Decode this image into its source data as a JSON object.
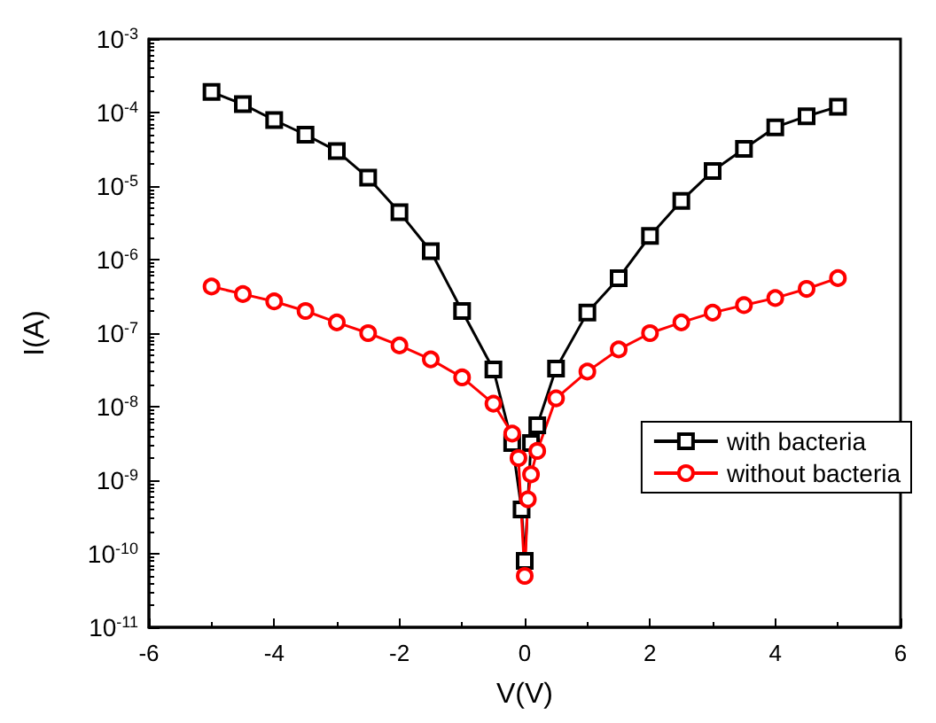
{
  "chart_data": {
    "type": "line",
    "xlabel": "V(V)",
    "ylabel": "I(A)",
    "series": [
      {
        "name": "with bacteria",
        "color": "#000000",
        "marker": "square",
        "x": [
          -5,
          -4.5,
          -4,
          -3.5,
          -3,
          -2.5,
          -2,
          -1.5,
          -1,
          -0.5,
          -0.2,
          -0.05,
          0,
          0.1,
          0.2,
          0.5,
          1,
          1.5,
          2,
          2.5,
          3,
          3.5,
          4,
          4.5,
          5
        ],
        "values": [
          0.00019,
          0.00013,
          7.9e-05,
          5e-05,
          3e-05,
          1.3e-05,
          4.4e-06,
          1.3e-06,
          2e-07,
          3.2e-08,
          3.2e-09,
          4e-10,
          8e-11,
          3.2e-09,
          5.6e-09,
          3.3e-08,
          1.9e-07,
          5.6e-07,
          2.1e-06,
          6.3e-06,
          1.6e-05,
          3.2e-05,
          6.3e-05,
          8.9e-05,
          0.00012
        ]
      },
      {
        "name": "without bacteria",
        "color": "#ff0000",
        "marker": "circle",
        "x": [
          -5,
          -4.5,
          -4,
          -3.5,
          -3,
          -2.5,
          -2,
          -1.5,
          -1,
          -0.5,
          -0.2,
          -0.1,
          0,
          0.05,
          0.1,
          0.2,
          0.5,
          1,
          1.5,
          2,
          2.5,
          3,
          3.5,
          4,
          4.5,
          5
        ],
        "values": [
          4.3e-07,
          3.4e-07,
          2.7e-07,
          2e-07,
          1.4e-07,
          1e-07,
          6.8e-08,
          4.4e-08,
          2.5e-08,
          1.1e-08,
          4.3e-09,
          2e-09,
          5e-11,
          5.5e-10,
          1.2e-09,
          2.5e-09,
          1.3e-08,
          3e-08,
          6e-08,
          1e-07,
          1.4e-07,
          1.9e-07,
          2.4e-07,
          3e-07,
          4e-07,
          5.6e-07
        ]
      }
    ],
    "xlim": [
      -6,
      6
    ],
    "xticks": [
      -6,
      -4,
      -2,
      0,
      2,
      4,
      6
    ],
    "ylim": [
      1e-11,
      0.001
    ],
    "yticks": [
      {
        "value": 1e-11,
        "label": "10$^{-11}$"
      },
      {
        "value": 1e-10,
        "label": "10$^{-10}$"
      },
      {
        "value": 1e-09,
        "label": "10$^{-9}$"
      },
      {
        "value": 1e-08,
        "label": "10$^{-8}$"
      },
      {
        "value": 1e-07,
        "label": "10$^{-7}$"
      },
      {
        "value": 1e-06,
        "label": "10$^{-6}$"
      },
      {
        "value": 1e-05,
        "label": "10$^{-5}$"
      },
      {
        "value": 0.0001,
        "label": "10$^{-4}$"
      },
      {
        "value": 0.001,
        "label": "10$^{-3}$"
      }
    ],
    "log": "y",
    "grid": false,
    "legend": "right",
    "line_style": "solid"
  }
}
